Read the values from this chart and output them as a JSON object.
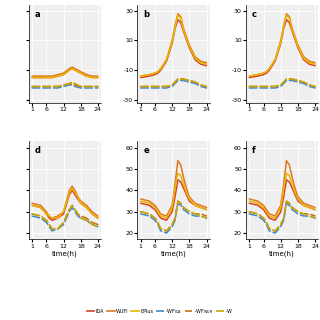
{
  "panels": [
    "a",
    "b",
    "c",
    "d",
    "e",
    "f"
  ],
  "time": [
    1,
    2,
    3,
    4,
    5,
    6,
    7,
    8,
    9,
    10,
    11,
    12,
    13,
    14,
    15,
    16,
    17,
    18,
    19,
    20,
    21,
    22,
    23,
    24
  ],
  "upper_ylim": [
    -32,
    34
  ],
  "upper_yticks": [
    -30,
    -10,
    10,
    30
  ],
  "lower_ylim": [
    17,
    63
  ],
  "lower_yticks": [
    20,
    30,
    40,
    50,
    60
  ],
  "xticks": [
    1,
    6,
    12,
    18,
    24
  ],
  "colors": {
    "IDA": "#d94030",
    "WUFI": "#e07820",
    "EPlus": "#e8b800",
    "WF_IDA": "#4488cc",
    "WF_WUFI": "#c87010",
    "WF_EPlus": "#c8a800"
  },
  "bg_color": "#efefef",
  "lw_solid": 1.1,
  "lw_dash": 1.1
}
